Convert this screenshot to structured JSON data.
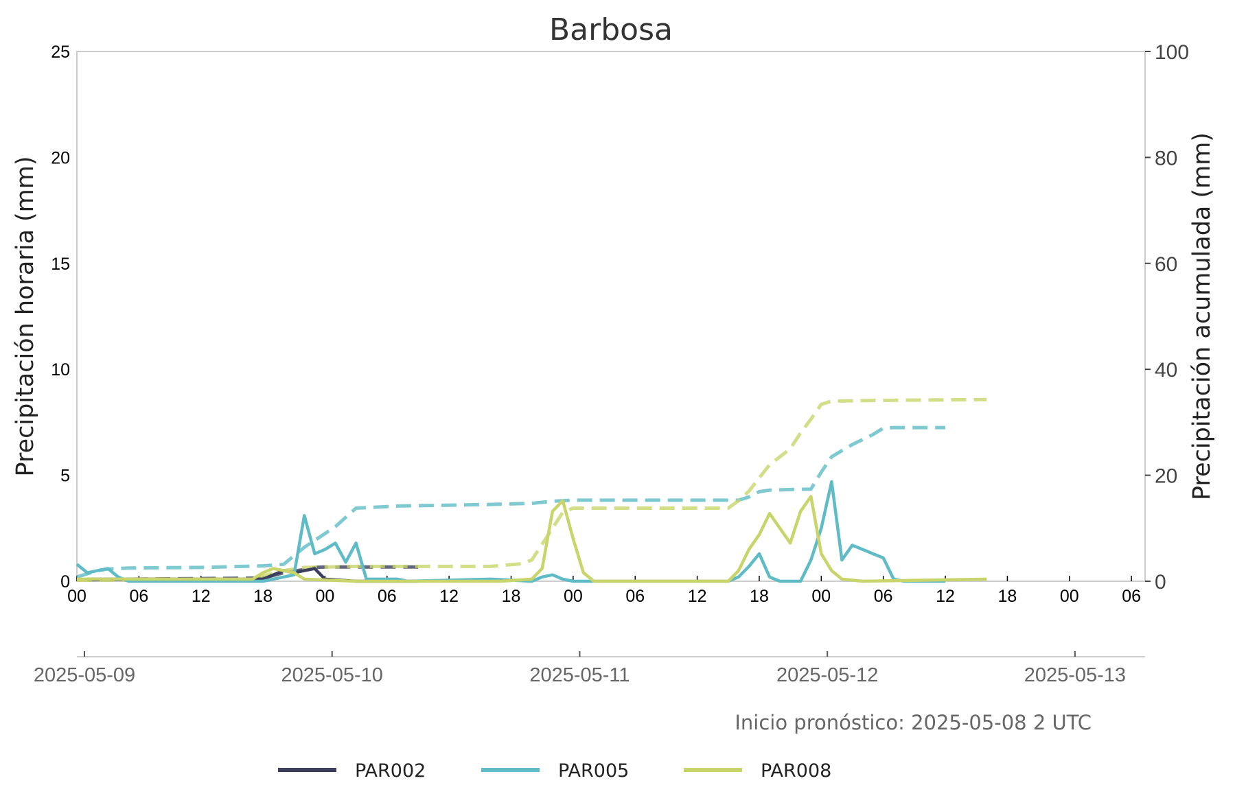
{
  "chart_data": {
    "type": "line",
    "title": "Barbosa",
    "ylabel_left": "Precipitación horaria (mm)",
    "ylabel_right": "Precipitación acumulada (mm)",
    "ylim_left": [
      0,
      25
    ],
    "ylim_right": [
      0,
      100
    ],
    "yticks_left": [
      "0",
      "5",
      "10",
      "15",
      "20",
      "25"
    ],
    "yticks_right": [
      "0",
      "20",
      "40",
      "60",
      "80",
      "100"
    ],
    "x_hour_ticks": [
      "00",
      "06",
      "12",
      "18",
      "00",
      "06",
      "12",
      "18",
      "00",
      "06",
      "12",
      "18",
      "00",
      "06",
      "12",
      "18",
      "00",
      "06"
    ],
    "x_date_ticks": [
      "2025-05-09",
      "2025-05-10",
      "2025-05-11",
      "2025-05-12",
      "2025-05-13"
    ],
    "grid": false,
    "legend_position": "bottom",
    "annotation": "Inicio pronóstico: 2025-05-08 2 UTC",
    "series": [
      {
        "name": "PAR002",
        "color": "#3b3e5c",
        "hourly": [
          [
            1,
            0.1
          ],
          [
            6,
            0.1
          ],
          [
            12,
            0.1
          ],
          [
            18,
            0.1
          ],
          [
            19,
            0.3
          ],
          [
            20,
            0.5
          ],
          [
            21,
            0.4
          ],
          [
            22,
            0.5
          ],
          [
            23,
            0.6
          ],
          [
            24,
            0.1
          ],
          [
            27,
            0.0
          ],
          [
            33,
            0.0
          ]
        ],
        "accumulated": [
          [
            1,
            0.3
          ],
          [
            6,
            0.4
          ],
          [
            12,
            0.5
          ],
          [
            18,
            0.6
          ],
          [
            20,
            1.6
          ],
          [
            22,
            2.2
          ],
          [
            23,
            2.6
          ],
          [
            24,
            2.7
          ],
          [
            33,
            2.7
          ]
        ]
      },
      {
        "name": "PAR005",
        "color": "#5fbcc6",
        "hourly": [
          [
            0,
            0.8
          ],
          [
            1,
            0.4
          ],
          [
            2,
            0.5
          ],
          [
            3,
            0.6
          ],
          [
            4,
            0.2
          ],
          [
            5,
            0.0
          ],
          [
            18,
            0.0
          ],
          [
            20,
            0.2
          ],
          [
            21,
            0.3
          ],
          [
            22,
            3.1
          ],
          [
            23,
            1.3
          ],
          [
            24,
            1.5
          ],
          [
            25,
            1.8
          ],
          [
            26,
            0.9
          ],
          [
            27,
            1.8
          ],
          [
            28,
            0.1
          ],
          [
            30,
            0.1
          ],
          [
            31,
            0.1
          ],
          [
            32,
            0.0
          ],
          [
            40,
            0.1
          ],
          [
            44,
            0.0
          ],
          [
            45,
            0.2
          ],
          [
            46,
            0.3
          ],
          [
            47,
            0.1
          ],
          [
            48,
            0.0
          ],
          [
            63,
            0.0
          ],
          [
            64,
            0.2
          ],
          [
            65,
            0.7
          ],
          [
            66,
            1.3
          ],
          [
            67,
            0.2
          ],
          [
            68,
            0.0
          ],
          [
            70,
            0.0
          ],
          [
            71,
            1.0
          ],
          [
            72,
            2.5
          ],
          [
            73,
            4.7
          ],
          [
            74,
            1.0
          ],
          [
            75,
            1.7
          ],
          [
            76,
            1.5
          ],
          [
            77,
            1.3
          ],
          [
            78,
            1.1
          ],
          [
            79,
            0.1
          ],
          [
            80,
            0.0
          ],
          [
            84,
            0.0
          ]
        ],
        "accumulated": [
          [
            0,
            0.8
          ],
          [
            2,
            2.0
          ],
          [
            3,
            2.3
          ],
          [
            5,
            2.5
          ],
          [
            12,
            2.6
          ],
          [
            18,
            2.9
          ],
          [
            20,
            3.2
          ],
          [
            22,
            6.4
          ],
          [
            25,
            10.3
          ],
          [
            27,
            13.8
          ],
          [
            31,
            14.2
          ],
          [
            40,
            14.5
          ],
          [
            44,
            14.7
          ],
          [
            46,
            15.1
          ],
          [
            48,
            15.3
          ],
          [
            64,
            15.3
          ],
          [
            65,
            15.9
          ],
          [
            66,
            16.9
          ],
          [
            67,
            17.2
          ],
          [
            71,
            17.4
          ],
          [
            72,
            20.6
          ],
          [
            73,
            23.5
          ],
          [
            75,
            25.8
          ],
          [
            77,
            27.7
          ],
          [
            78,
            28.9
          ],
          [
            79,
            29.0
          ],
          [
            84,
            29.0
          ]
        ]
      },
      {
        "name": "PAR008",
        "color": "#c9d46a",
        "hourly": [
          [
            0,
            0.1
          ],
          [
            17,
            0.1
          ],
          [
            18,
            0.4
          ],
          [
            19,
            0.6
          ],
          [
            20,
            0.5
          ],
          [
            21,
            0.4
          ],
          [
            22,
            0.1
          ],
          [
            27,
            0.0
          ],
          [
            32,
            0.0
          ],
          [
            37,
            0.0
          ],
          [
            41,
            0.0
          ],
          [
            44,
            0.1
          ],
          [
            45,
            0.6
          ],
          [
            46,
            3.3
          ],
          [
            47,
            3.8
          ],
          [
            48,
            2.0
          ],
          [
            49,
            0.4
          ],
          [
            50,
            0.0
          ],
          [
            55,
            0.0
          ],
          [
            63,
            0.0
          ],
          [
            64,
            0.5
          ],
          [
            65,
            1.5
          ],
          [
            66,
            2.2
          ],
          [
            67,
            3.2
          ],
          [
            68,
            2.5
          ],
          [
            69,
            1.8
          ],
          [
            70,
            3.3
          ],
          [
            71,
            4.0
          ],
          [
            72,
            1.3
          ],
          [
            73,
            0.5
          ],
          [
            74,
            0.1
          ],
          [
            76,
            0.0
          ],
          [
            88,
            0.1
          ]
        ],
        "accumulated": [
          [
            0,
            0.2
          ],
          [
            17,
            0.3
          ],
          [
            18,
            1.0
          ],
          [
            20,
            2.0
          ],
          [
            22,
            2.6
          ],
          [
            27,
            2.8
          ],
          [
            34,
            2.8
          ],
          [
            40,
            2.8
          ],
          [
            43,
            3.3
          ],
          [
            44,
            4.0
          ],
          [
            45,
            7.0
          ],
          [
            46,
            10.0
          ],
          [
            47,
            13.0
          ],
          [
            48,
            13.8
          ],
          [
            63,
            13.8
          ],
          [
            64,
            15.2
          ],
          [
            65,
            17.0
          ],
          [
            66,
            19.5
          ],
          [
            67,
            22.0
          ],
          [
            69,
            25.0
          ],
          [
            70,
            28.0
          ],
          [
            71,
            30.6
          ],
          [
            72,
            33.4
          ],
          [
            73,
            34.0
          ],
          [
            76,
            34.1
          ],
          [
            88,
            34.3
          ]
        ]
      }
    ]
  }
}
